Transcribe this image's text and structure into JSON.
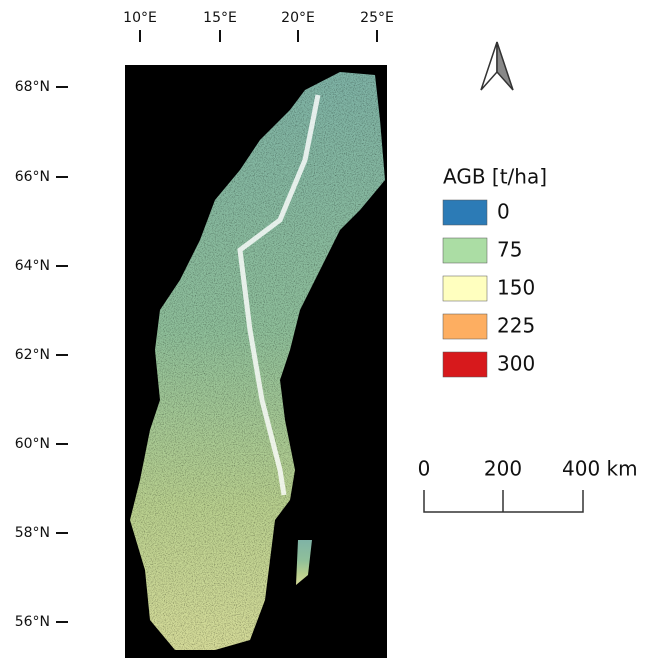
{
  "map": {
    "lon_ticks": [
      "10°E",
      "15°E",
      "20°E",
      "25°E"
    ],
    "lat_ticks": [
      "68°N",
      "66°N",
      "64°N",
      "62°N",
      "60°N",
      "58°N",
      "56°N"
    ],
    "legend": {
      "title": "AGB [t/ha]",
      "items": [
        {
          "label": "0",
          "color": "#2c7bb6"
        },
        {
          "label": "75",
          "color": "#abdda4"
        },
        {
          "label": "150",
          "color": "#ffffbf"
        },
        {
          "label": "225",
          "color": "#fdae61"
        },
        {
          "label": "300",
          "color": "#d7191c"
        }
      ]
    },
    "scale_bar": {
      "labels": [
        "0",
        "200",
        "400 km"
      ]
    }
  }
}
